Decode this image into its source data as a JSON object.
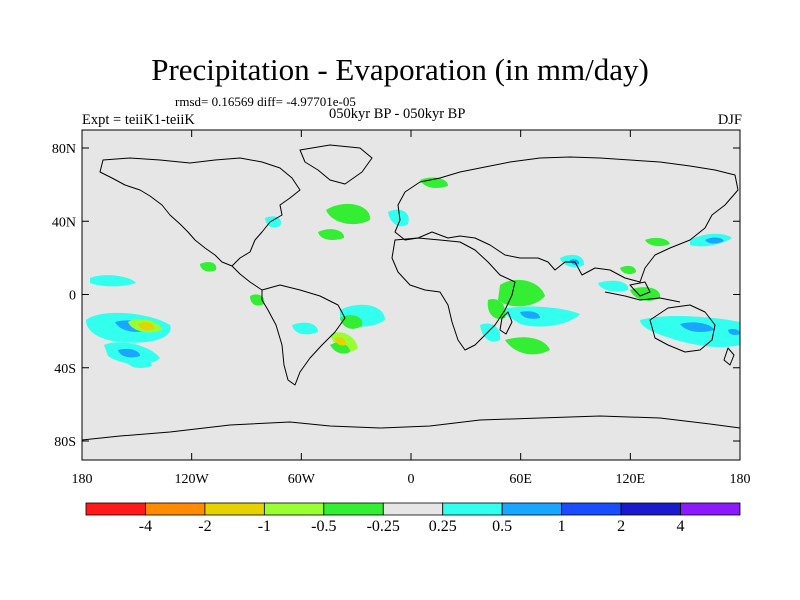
{
  "title": "Precipitation - Evaporation (in mm/day)",
  "stats": "rmsd= 0.16569 diff= -4.97701e-05",
  "experiment": "Expt = teiiK1-teiiK",
  "period": "050kyr BP - 050kyr BP",
  "season": "DJF",
  "axes": {
    "lat_ticks": [
      "80N",
      "40N",
      "0",
      "40S",
      "80S"
    ],
    "lon_ticks": [
      "180",
      "120W",
      "60W",
      "0",
      "60E",
      "120E",
      "180"
    ]
  },
  "colorbar": {
    "labels": [
      "-4",
      "-2",
      "-1",
      "-0.5",
      "-0.25",
      "0.25",
      "0.5",
      "1",
      "2",
      "4"
    ],
    "colors": [
      "#ff1a1a",
      "#ff8c00",
      "#e6d200",
      "#99ff33",
      "#33ee33",
      "#e6e6e6",
      "#33ffee",
      "#1aa6ff",
      "#1a4dff",
      "#1a1acc",
      "#8c1aff"
    ]
  },
  "colors": {
    "background": "#e6e6e6",
    "coast": "#000000"
  }
}
